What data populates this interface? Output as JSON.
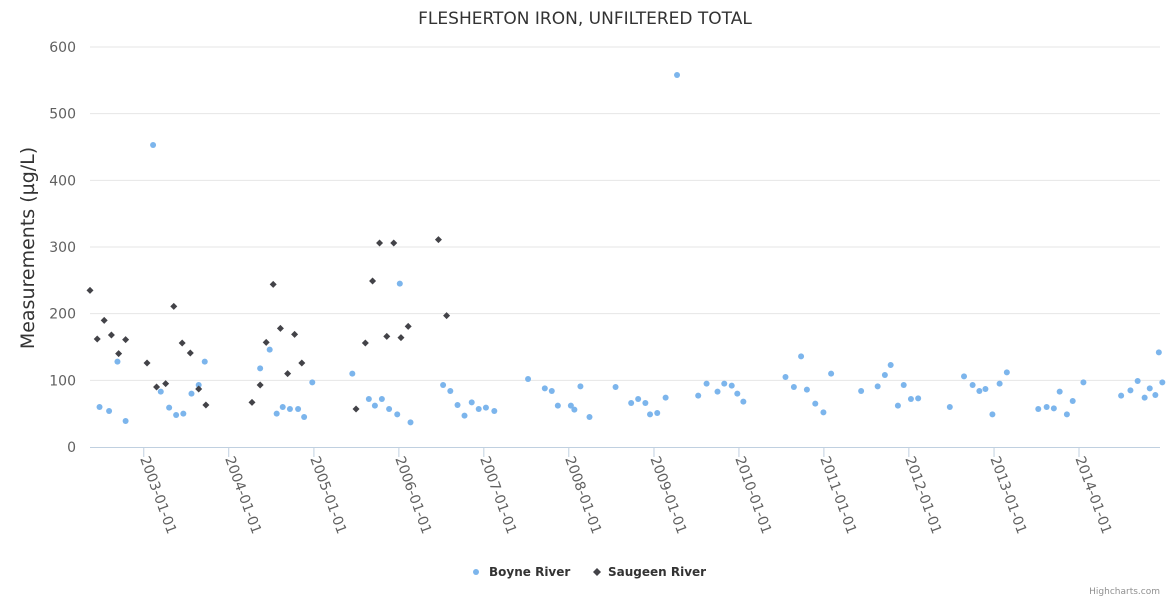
{
  "chart_data": {
    "type": "scatter",
    "title": "FLESHERTON IRON, UNFILTERED TOTAL",
    "xlabel": "",
    "ylabel": "Measurements (µg/L)",
    "ylim": [
      0,
      600
    ],
    "yticks": [
      0,
      100,
      200,
      300,
      400,
      500,
      600
    ],
    "xlim": [
      "2002-05-15",
      "2014-12-15"
    ],
    "xticks": [
      "2003-01-01",
      "2004-01-01",
      "2005-01-01",
      "2006-01-01",
      "2007-01-01",
      "2008-01-01",
      "2009-01-01",
      "2010-01-01",
      "2011-01-01",
      "2012-01-01",
      "2013-01-01",
      "2014-01-01"
    ],
    "legend_position": "bottom-center",
    "series": [
      {
        "name": "Boyne River",
        "color": "#7cb5ec",
        "marker": "circle",
        "points": [
          [
            "2002-06-25",
            60
          ],
          [
            "2002-08-05",
            54
          ],
          [
            "2002-09-10",
            128
          ],
          [
            "2002-10-15",
            39
          ],
          [
            "2003-02-10",
            453
          ],
          [
            "2003-03-15",
            83
          ],
          [
            "2003-04-20",
            59
          ],
          [
            "2003-05-20",
            48
          ],
          [
            "2003-06-20",
            50
          ],
          [
            "2003-07-25",
            80
          ],
          [
            "2003-08-25",
            93
          ],
          [
            "2003-09-20",
            128
          ],
          [
            "2004-05-15",
            118
          ],
          [
            "2004-06-25",
            146
          ],
          [
            "2004-07-25",
            50
          ],
          [
            "2004-08-20",
            60
          ],
          [
            "2004-09-20",
            57
          ],
          [
            "2004-10-25",
            57
          ],
          [
            "2004-11-20",
            45
          ],
          [
            "2004-12-25",
            97
          ],
          [
            "2005-06-15",
            110
          ],
          [
            "2005-08-25",
            72
          ],
          [
            "2005-09-20",
            62
          ],
          [
            "2005-10-20",
            72
          ],
          [
            "2005-11-20",
            57
          ],
          [
            "2005-12-25",
            49
          ],
          [
            "2006-01-05",
            245
          ],
          [
            "2006-02-20",
            37
          ],
          [
            "2006-07-10",
            93
          ],
          [
            "2006-08-10",
            84
          ],
          [
            "2006-09-10",
            63
          ],
          [
            "2006-10-10",
            47
          ],
          [
            "2006-11-10",
            67
          ],
          [
            "2006-12-10",
            57
          ],
          [
            "2007-01-10",
            59
          ],
          [
            "2007-02-15",
            54
          ],
          [
            "2007-07-10",
            102
          ],
          [
            "2007-09-20",
            88
          ],
          [
            "2007-10-20",
            84
          ],
          [
            "2007-11-15",
            62
          ],
          [
            "2008-01-10",
            62
          ],
          [
            "2008-01-25",
            56
          ],
          [
            "2008-02-20",
            91
          ],
          [
            "2008-03-30",
            45
          ],
          [
            "2008-07-20",
            90
          ],
          [
            "2008-09-25",
            66
          ],
          [
            "2008-10-25",
            72
          ],
          [
            "2008-11-25",
            66
          ],
          [
            "2008-12-15",
            49
          ],
          [
            "2009-01-15",
            51
          ],
          [
            "2009-02-20",
            74
          ],
          [
            "2009-04-10",
            558
          ],
          [
            "2009-07-10",
            77
          ],
          [
            "2009-08-15",
            95
          ],
          [
            "2009-10-01",
            83
          ],
          [
            "2009-10-30",
            95
          ],
          [
            "2009-12-01",
            92
          ],
          [
            "2009-12-25",
            80
          ],
          [
            "2010-01-20",
            68
          ],
          [
            "2010-07-20",
            105
          ],
          [
            "2010-08-25",
            90
          ],
          [
            "2010-09-25",
            136
          ],
          [
            "2010-10-20",
            86
          ],
          [
            "2010-11-25",
            65
          ],
          [
            "2010-12-30",
            52
          ],
          [
            "2011-02-01",
            110
          ],
          [
            "2011-06-10",
            84
          ],
          [
            "2011-08-20",
            91
          ],
          [
            "2011-09-20",
            108
          ],
          [
            "2011-10-15",
            123
          ],
          [
            "2011-11-15",
            62
          ],
          [
            "2011-12-10",
            93
          ],
          [
            "2012-01-10",
            72
          ],
          [
            "2012-02-10",
            73
          ],
          [
            "2012-06-25",
            60
          ],
          [
            "2012-08-25",
            106
          ],
          [
            "2012-10-01",
            93
          ],
          [
            "2012-10-30",
            84
          ],
          [
            "2012-11-25",
            87
          ],
          [
            "2012-12-25",
            49
          ],
          [
            "2013-01-25",
            95
          ],
          [
            "2013-02-25",
            112
          ],
          [
            "2013-07-10",
            57
          ],
          [
            "2013-08-15",
            60
          ],
          [
            "2013-09-15",
            58
          ],
          [
            "2013-10-10",
            83
          ],
          [
            "2013-11-10",
            49
          ],
          [
            "2013-12-05",
            69
          ],
          [
            "2014-01-20",
            97
          ],
          [
            "2014-07-01",
            77
          ],
          [
            "2014-08-10",
            85
          ],
          [
            "2014-09-10",
            99
          ],
          [
            "2014-10-10",
            74
          ],
          [
            "2014-11-01",
            88
          ],
          [
            "2014-11-25",
            78
          ],
          [
            "2014-12-10",
            142
          ],
          [
            "2014-12-25",
            97
          ]
        ]
      },
      {
        "name": "Saugeen River",
        "color": "#434348",
        "marker": "diamond",
        "points": [
          [
            "2002-05-15",
            235
          ],
          [
            "2002-06-15",
            162
          ],
          [
            "2002-07-15",
            190
          ],
          [
            "2002-08-15",
            168
          ],
          [
            "2002-09-15",
            140
          ],
          [
            "2002-10-15",
            161
          ],
          [
            "2003-01-15",
            126
          ],
          [
            "2003-02-25",
            90
          ],
          [
            "2003-04-05",
            95
          ],
          [
            "2003-05-10",
            211
          ],
          [
            "2003-06-15",
            156
          ],
          [
            "2003-07-20",
            141
          ],
          [
            "2003-08-25",
            87
          ],
          [
            "2003-09-25",
            63
          ],
          [
            "2004-04-10",
            67
          ],
          [
            "2004-05-15",
            93
          ],
          [
            "2004-06-10",
            157
          ],
          [
            "2004-07-10",
            244
          ],
          [
            "2004-08-10",
            178
          ],
          [
            "2004-09-10",
            110
          ],
          [
            "2004-10-10",
            169
          ],
          [
            "2004-11-10",
            126
          ],
          [
            "2005-07-01",
            57
          ],
          [
            "2005-08-10",
            156
          ],
          [
            "2005-09-10",
            249
          ],
          [
            "2005-10-10",
            306
          ],
          [
            "2005-11-10",
            166
          ],
          [
            "2005-12-10",
            306
          ],
          [
            "2006-01-10",
            164
          ],
          [
            "2006-02-10",
            181
          ],
          [
            "2006-06-20",
            311
          ],
          [
            "2006-07-25",
            197
          ]
        ]
      }
    ]
  },
  "credit": "Highcharts.com"
}
